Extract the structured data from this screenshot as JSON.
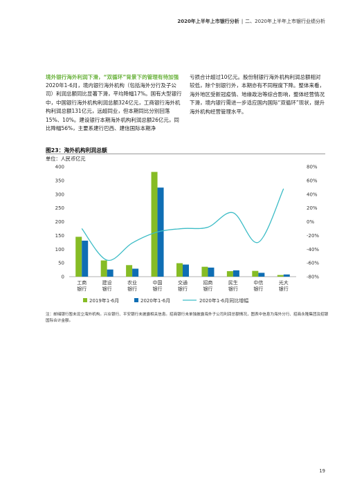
{
  "header": {
    "report_title": "2020年上半年上市银行分析",
    "separator": "|",
    "section": "二、2020年上半年上市银行业绩分析"
  },
  "section_heading": "境外银行海外利润下滑，“双循环”背景下的管理有待加强",
  "paragraph_left": "2020年1-6月，境内银行海外机构（包括海外分行及子公司）利润总额同比显著下滑，平均降幅17%。国有大型银行中，中国银行海外机构利润总额324亿元，工商银行海外机构利润总额131亿元，远超同业，但本期同比分别回落15%、10%。建设银行本期海外机构利润总额26亿元，同比降幅56%，主要系建行巴西、建信国际本期净",
  "paragraph_right": "亏损合计超过10亿元。股份制银行海外机构利润总额相对较低，除个别银行外，本期亦有不同程度下降。整体来看，海外地区受新冠疫情、地缘政治等综合影响，整体经营情况下滑，境内银行需进一步适应国内国际“双循环”现状，提升海外机构经营管理水平。",
  "figure": {
    "title": "图23：海外机构利润总额",
    "unit": "单位：人民币亿元"
  },
  "chart_data": {
    "type": "bar",
    "title": "图23：海外机构利润总额",
    "ylabel": "单位：人民币亿元",
    "categories": [
      "工商\n银行",
      "建设\n银行",
      "农业\n银行",
      "中国\n银行",
      "交通\n银行",
      "招商\n银行",
      "民生\n银行",
      "中信\n银行",
      "光大\n银行"
    ],
    "ylim": [
      0,
      400
    ],
    "yticks": [
      "0",
      "50",
      "100",
      "150",
      "200",
      "250",
      "300",
      "350",
      "400"
    ],
    "y2lim": [
      -80,
      80
    ],
    "y2ticks": [
      "-80%",
      "-60%",
      "-40%",
      "-20%",
      "0%",
      "20%",
      "40%",
      "60%",
      "80%"
    ],
    "series": [
      {
        "name": "2019年1-6月",
        "type": "bar",
        "color": "#86bc25",
        "values": [
          145,
          59,
          42,
          381,
          49,
          36,
          20,
          21,
          6
        ]
      },
      {
        "name": "2020年1-6月",
        "type": "bar",
        "color": "#0f6eb4",
        "values": [
          131,
          26,
          29,
          324,
          44,
          33,
          23,
          14,
          8
        ]
      },
      {
        "name": "2020年1-6月同比增幅",
        "type": "line",
        "axis": "right",
        "color": "#3cbcc6",
        "values": [
          -10,
          -56,
          -31,
          -15,
          -10,
          -8,
          13,
          -30,
          48
        ]
      }
    ],
    "legend_position": "bottom",
    "grid": false
  },
  "note": "注：邮储银行暂未设立海外机构。兴业银行、平安银行未披露相关信息。招商银行未单独披露海外子公司利润总额情况，图表中信息为海外分行、招商永隆集团及招银国际合计金额。",
  "page_number": "19"
}
